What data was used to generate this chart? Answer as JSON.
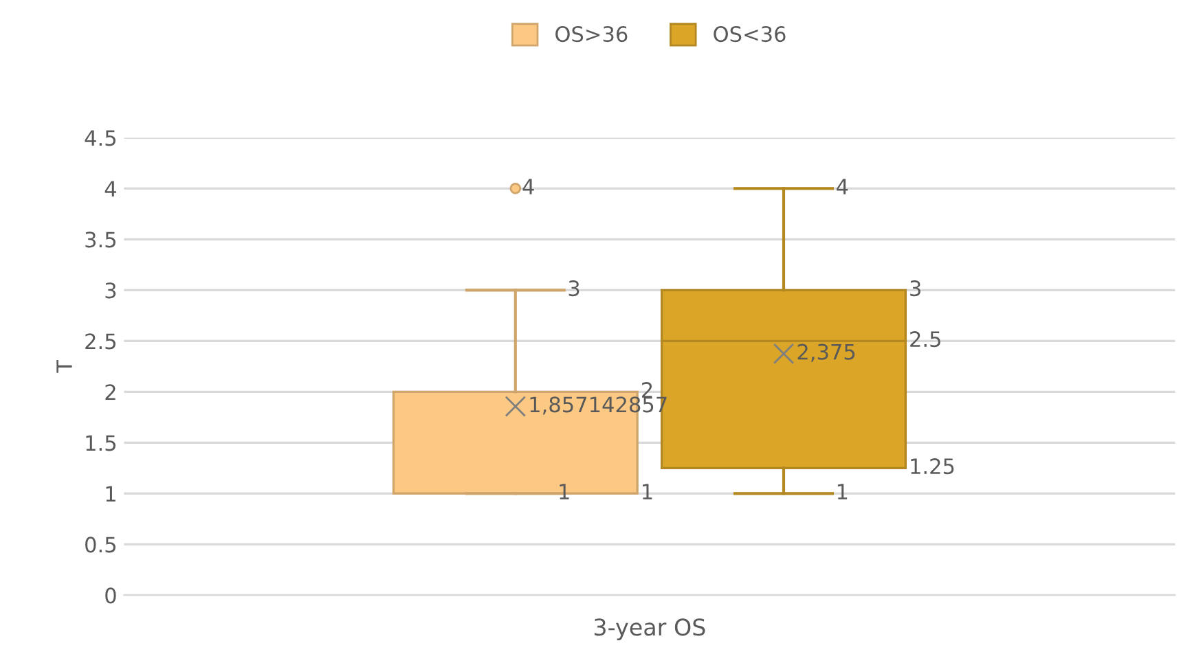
{
  "chart_data": {
    "type": "box",
    "categories": [
      "3-year OS"
    ],
    "ylabel": "T",
    "ylim": [
      0,
      4.5
    ],
    "yticks": [
      0,
      0.5,
      1,
      1.5,
      2,
      2.5,
      3,
      3.5,
      4,
      4.5
    ],
    "grid": "y",
    "legend": "top",
    "marker": "cross",
    "series": [
      {
        "name": "OS>36",
        "color": "#fcc984",
        "boxes": [
          {
            "low": 1,
            "q1": 1,
            "median": 1,
            "q3": 2,
            "high": 3,
            "mean": 1.857142857,
            "outliers": [
              4
            ]
          }
        ],
        "value_labels": [
          [
            null,
            "1",
            "1",
            "2",
            "3",
            "1,857142857",
            "4"
          ]
        ]
      },
      {
        "name": "OS<36",
        "color": "#dba628",
        "boxes": [
          {
            "low": 1,
            "q1": 1.25,
            "median": 2.5,
            "q3": 3,
            "high": 4,
            "mean": 2.375
          }
        ],
        "value_labels": [
          [
            "1",
            "1.25",
            "2.5",
            "3",
            "4",
            "2,375"
          ]
        ]
      }
    ]
  }
}
